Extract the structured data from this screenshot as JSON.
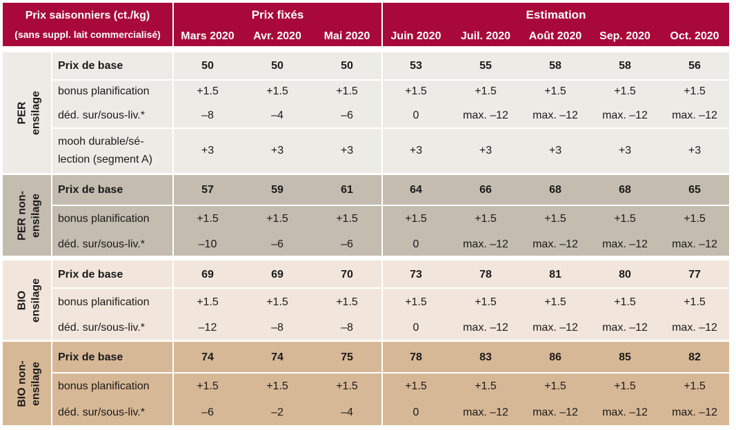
{
  "header": {
    "title_line1": "Prix saisonniers (ct./kg)",
    "title_line2": "(sans suppl. lait commercialisé)",
    "group_fixed": "Prix fixés",
    "group_estimate": "Estimation",
    "months": [
      "Mars 2020",
      "Avr. 2020",
      "Mai 2020",
      "Juin 2020",
      "Juil. 2020",
      "Août 2020",
      "Sep. 2020",
      "Oct. 2020"
    ]
  },
  "colors": {
    "header": "#a8093a",
    "per_ensilage": "#ecebe6",
    "per_non_ensilage": "#c3bcaf",
    "bio_ensilage": "#f2e6dc",
    "bio_non_ensilage": "#d7b896"
  },
  "groups": [
    {
      "label_line1": "PER",
      "label_line2": "ensilage",
      "rows": [
        {
          "label": "Prix de base",
          "values": [
            "50",
            "50",
            "50",
            "53",
            "55",
            "58",
            "58",
            "56"
          ]
        },
        {
          "label": "bonus planification",
          "values": [
            "+1.5",
            "+1.5",
            "+1.5",
            "+1.5",
            "+1.5",
            "+1.5",
            "+1.5",
            "+1.5"
          ]
        },
        {
          "label": "déd. sur/sous-liv.*",
          "values": [
            "–8",
            "–4",
            "–6",
            "0",
            "max. –12",
            "max. –12",
            "max. –12",
            "max. –12"
          ]
        },
        {
          "label_line1": "mooh durable/sé-",
          "label_line2": "lection (segment A)",
          "values": [
            "+3",
            "+3",
            "+3",
            "+3",
            "+3",
            "+3",
            "+3",
            "+3"
          ]
        }
      ]
    },
    {
      "label_line1": "PER non-",
      "label_line2": "ensilage",
      "rows": [
        {
          "label": "Prix de base",
          "values": [
            "57",
            "59",
            "61",
            "64",
            "66",
            "68",
            "68",
            "65"
          ]
        },
        {
          "label": "bonus planification",
          "values": [
            "+1.5",
            "+1.5",
            "+1.5",
            "+1.5",
            "+1.5",
            "+1.5",
            "+1.5",
            "+1.5"
          ]
        },
        {
          "label": "déd. sur/sous-liv.*",
          "values": [
            "–10",
            "–6",
            "–6",
            "0",
            "max. –12",
            "max. –12",
            "max. –12",
            "max. –12"
          ]
        }
      ]
    },
    {
      "label_line1": "BIO",
      "label_line2": "ensilage",
      "rows": [
        {
          "label": "Prix de base",
          "values": [
            "69",
            "69",
            "70",
            "73",
            "78",
            "81",
            "80",
            "77"
          ]
        },
        {
          "label": "bonus planification",
          "values": [
            "+1.5",
            "+1.5",
            "+1.5",
            "+1.5",
            "+1.5",
            "+1.5",
            "+1.5",
            "+1.5"
          ]
        },
        {
          "label": "déd. sur/sous-liv.*",
          "values": [
            "–12",
            "–8",
            "–8",
            "0",
            "max. –12",
            "max. –12",
            "max. –12",
            "max. –12"
          ]
        }
      ]
    },
    {
      "label_line1": "BIO non-",
      "label_line2": "ensilage",
      "rows": [
        {
          "label": "Prix de base",
          "values": [
            "74",
            "74",
            "75",
            "78",
            "83",
            "86",
            "85",
            "82"
          ]
        },
        {
          "label": "bonus planification",
          "values": [
            "+1.5",
            "+1.5",
            "+1.5",
            "+1.5",
            "+1.5",
            "+1.5",
            "+1.5",
            "+1.5"
          ]
        },
        {
          "label": "déd. sur/sous-liv.*",
          "values": [
            "–6",
            "–2",
            "–4",
            "0",
            "max. –12",
            "max. –12",
            "max. –12",
            "max. –12"
          ]
        }
      ]
    }
  ]
}
